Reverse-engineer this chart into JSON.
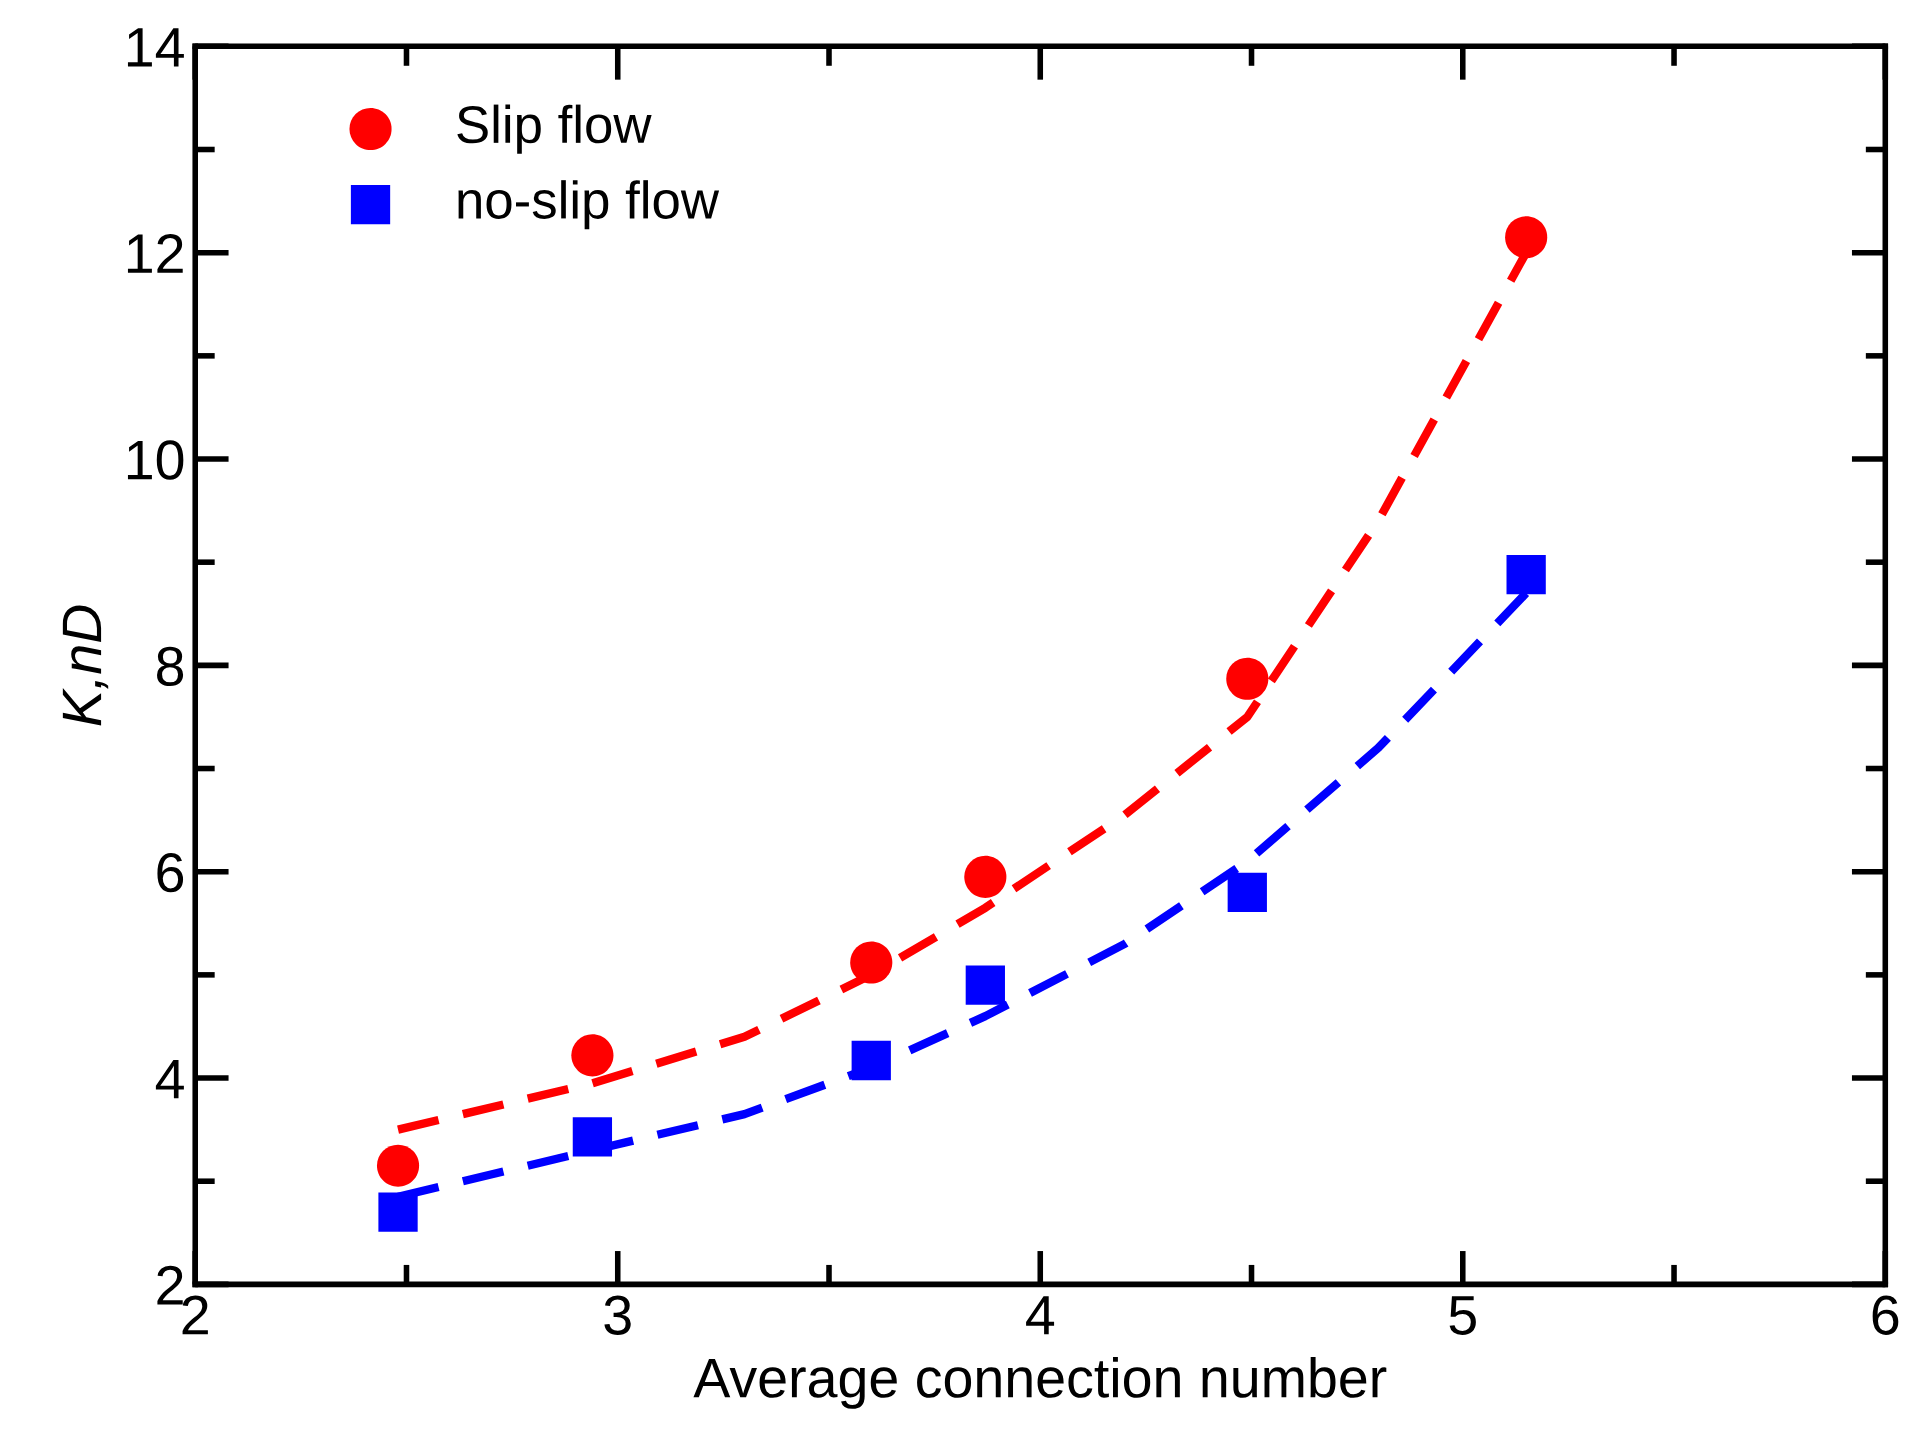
{
  "chart_data": {
    "type": "scatter",
    "xlabel": "Average connection number",
    "ylabel": "K,nD",
    "xlim": [
      2,
      6
    ],
    "ylim": [
      2,
      14
    ],
    "xticks": [
      2,
      3,
      4,
      5,
      6
    ],
    "yticks": [
      2,
      4,
      6,
      8,
      10,
      12,
      14
    ],
    "grid": false,
    "legend": "top left",
    "series": [
      {
        "name": "Slip flow",
        "color": "#ff0000",
        "marker": "circle",
        "x": [
          2.48,
          2.94,
          3.6,
          3.87,
          4.49,
          5.15
        ],
        "values": [
          3.15,
          4.22,
          5.12,
          5.95,
          7.87,
          12.15
        ]
      },
      {
        "name": "no-slip flow",
        "color": "#0000ff",
        "marker": "square",
        "x": [
          2.48,
          2.94,
          3.6,
          3.87,
          4.49,
          5.15
        ],
        "values": [
          2.7,
          3.43,
          4.17,
          4.9,
          5.8,
          8.88
        ]
      },
      {
        "type": "line",
        "line_style": "dashed",
        "marker": "none",
        "color": "#ff0000",
        "x": [
          2.48,
          2.94,
          3.3,
          3.6,
          3.87,
          4.2,
          4.49,
          4.8,
          5.15
        ],
        "values": [
          3.5,
          3.95,
          4.4,
          5.0,
          5.65,
          6.55,
          7.5,
          9.4,
          12.0
        ]
      },
      {
        "type": "line",
        "line_style": "dashed",
        "marker": "none",
        "color": "#0000ff",
        "x": [
          2.48,
          2.94,
          3.3,
          3.6,
          3.87,
          4.2,
          4.49,
          4.8,
          5.15
        ],
        "values": [
          2.85,
          3.3,
          3.65,
          4.1,
          4.6,
          5.3,
          6.1,
          7.2,
          8.7
        ]
      }
    ]
  }
}
